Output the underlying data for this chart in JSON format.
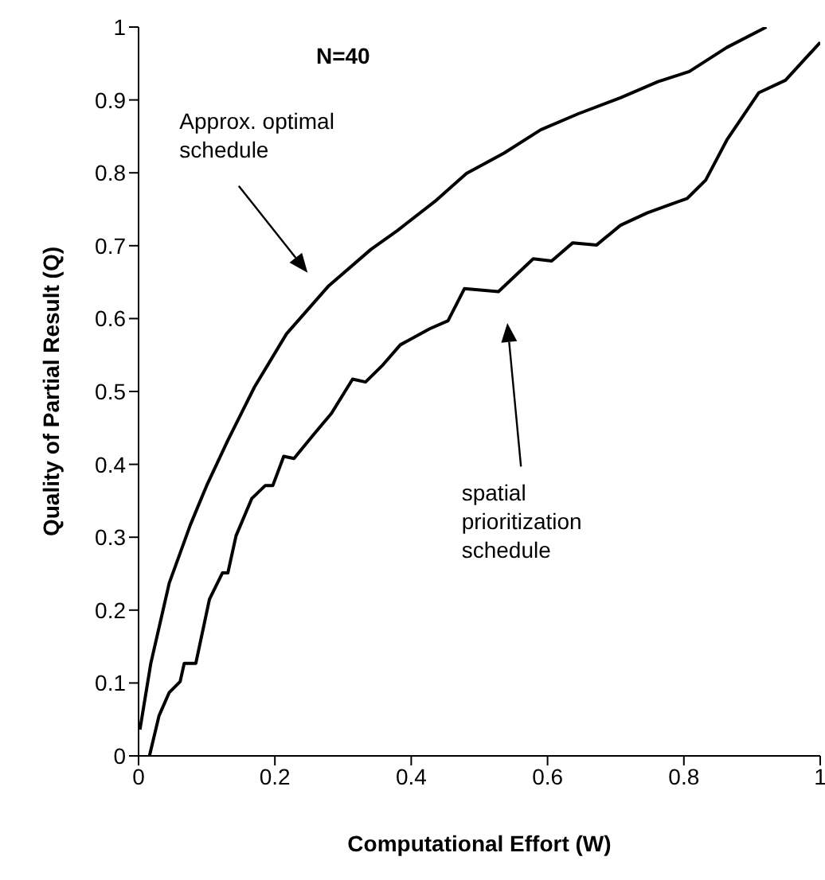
{
  "chart_data": {
    "type": "line",
    "xlabel": "Computational Effort (W)",
    "ylabel": "Quality of Partial Result (Q)",
    "xlim": [
      0,
      1
    ],
    "ylim": [
      0,
      1
    ],
    "xticks": [
      0,
      0.2,
      0.4,
      0.6,
      0.8,
      1
    ],
    "yticks": [
      0,
      0.1,
      0.2,
      0.3,
      0.4,
      0.5,
      0.6,
      0.7,
      0.8,
      0.9,
      1
    ],
    "grid": false,
    "marker": "none",
    "line_style": "solid",
    "annotations": [
      "N=40",
      "Approx. optimal schedule",
      "spatial prioritization schedule"
    ],
    "series": [
      {
        "color": "#000000",
        "x": [
          0.002,
          0.018,
          0.045,
          0.076,
          0.1,
          0.131,
          0.17,
          0.217,
          0.279,
          0.341,
          0.38,
          0.435,
          0.481,
          0.536,
          0.59,
          0.645,
          0.707,
          0.762,
          0.808,
          0.863,
          0.921
        ],
        "values": [
          0.036,
          0.127,
          0.237,
          0.317,
          0.371,
          0.433,
          0.506,
          0.579,
          0.645,
          0.695,
          0.721,
          0.761,
          0.799,
          0.827,
          0.859,
          0.881,
          0.903,
          0.925,
          0.939,
          0.972,
          1.0
        ]
      },
      {
        "color": "#000000",
        "x": [
          0.016,
          0.03,
          0.045,
          0.061,
          0.067,
          0.084,
          0.104,
          0.123,
          0.131,
          0.143,
          0.166,
          0.186,
          0.197,
          0.213,
          0.228,
          0.256,
          0.283,
          0.314,
          0.333,
          0.357,
          0.384,
          0.427,
          0.454,
          0.478,
          0.528,
          0.579,
          0.606,
          0.637,
          0.672,
          0.707,
          0.746,
          0.805,
          0.832,
          0.863,
          0.91,
          0.949,
          1.0
        ],
        "values": [
          0,
          0.055,
          0.087,
          0.102,
          0.127,
          0.127,
          0.215,
          0.251,
          0.251,
          0.302,
          0.353,
          0.371,
          0.371,
          0.411,
          0.408,
          0.44,
          0.47,
          0.517,
          0.513,
          0.535,
          0.564,
          0.586,
          0.597,
          0.641,
          0.637,
          0.682,
          0.679,
          0.704,
          0.701,
          0.728,
          0.745,
          0.765,
          0.79,
          0.845,
          0.91,
          0.927,
          0.979
        ]
      }
    ]
  }
}
